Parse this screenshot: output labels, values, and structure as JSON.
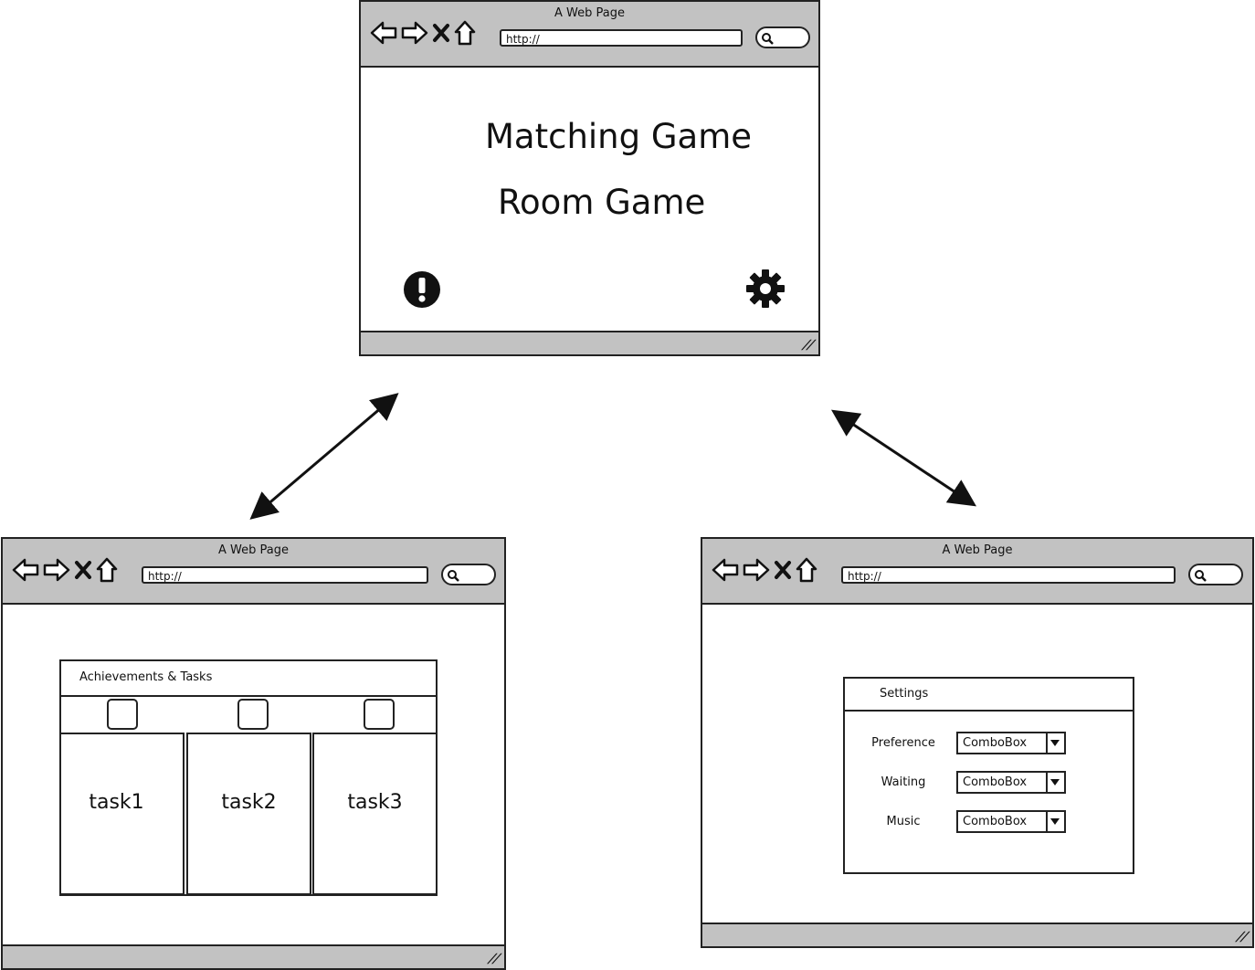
{
  "browser": {
    "title": "A Web Page",
    "url": "http://"
  },
  "menu_window": {
    "items": [
      "Matching Game",
      "Room Game"
    ],
    "left_icon": "exclamation-circle-icon",
    "right_icon": "gear-icon"
  },
  "achievements_window": {
    "panel_title": "Achievements & Tasks",
    "tasks": [
      "task1",
      "task2",
      "task3"
    ]
  },
  "settings_window": {
    "panel_title": "Settings",
    "rows": [
      {
        "label": "Preference",
        "value": "ComboBox"
      },
      {
        "label": "Waiting",
        "value": "ComboBox"
      },
      {
        "label": "Music",
        "value": "ComboBox"
      }
    ]
  },
  "colors": {
    "chrome": "#c2c2c2",
    "stroke": "#222222",
    "background": "#ffffff"
  }
}
